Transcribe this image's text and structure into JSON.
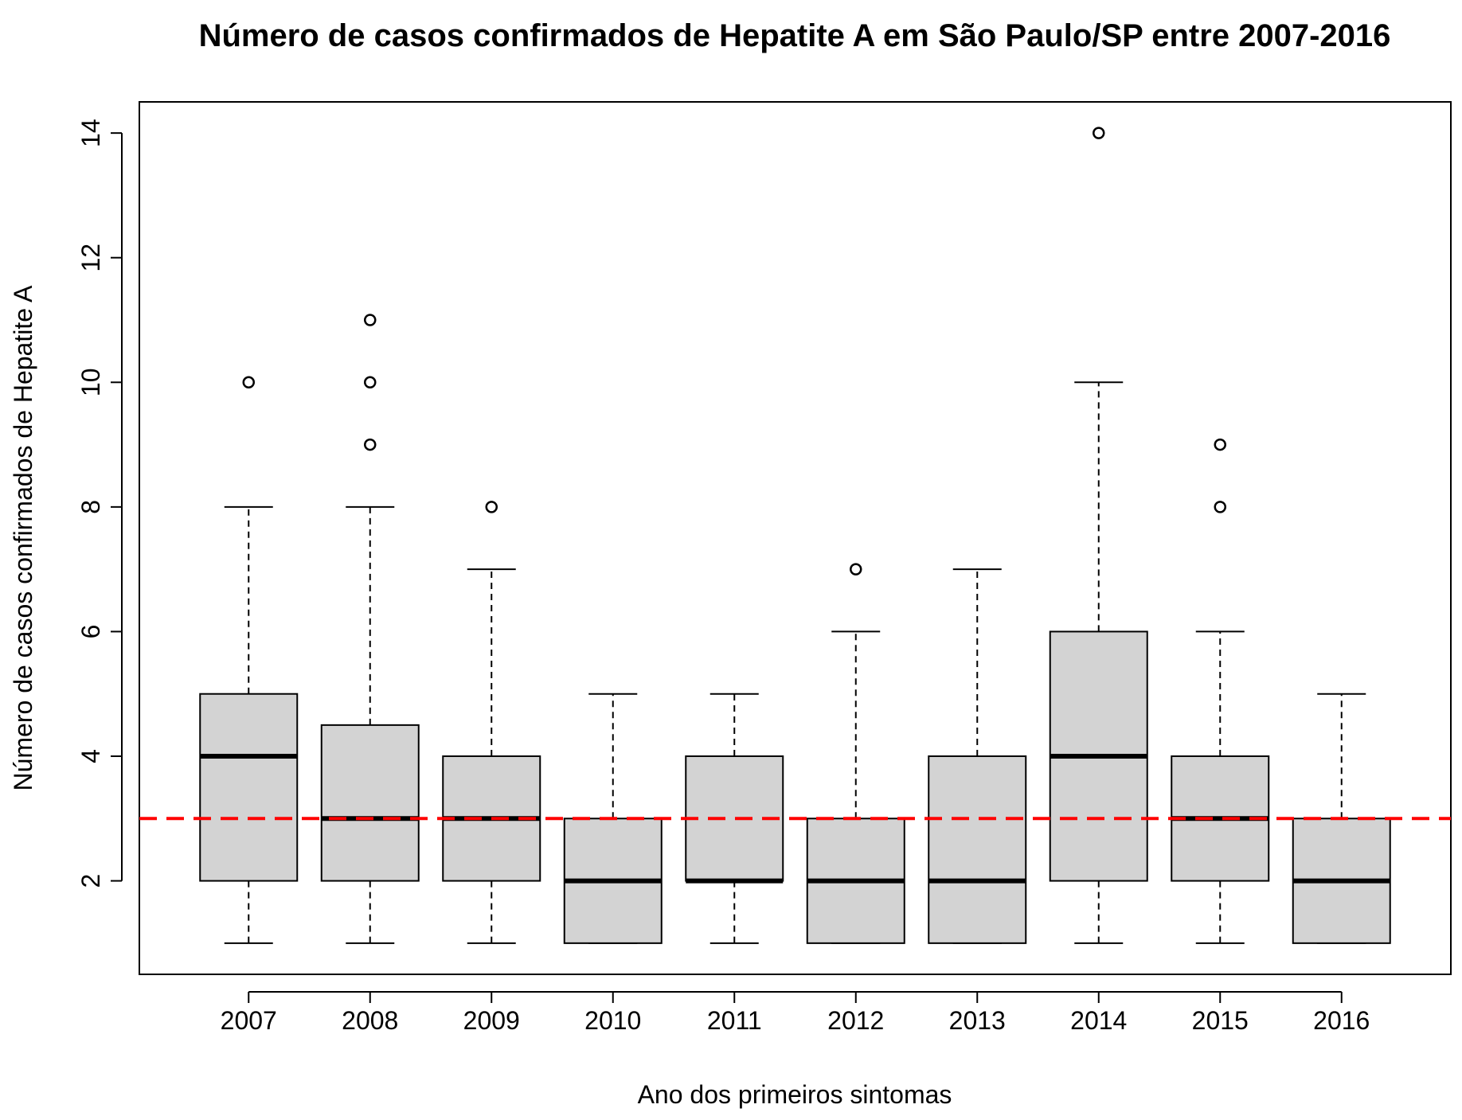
{
  "chart_data": {
    "type": "boxplot",
    "title": "Número de casos confirmados de Hepatite A em São Paulo/SP entre 2007-2016",
    "xlabel": "Ano dos primeiros sintomas",
    "ylabel": "Número de casos confirmados de Hepatite A",
    "ylim": [
      0.5,
      14.5
    ],
    "yticks": [
      2,
      4,
      6,
      8,
      10,
      12,
      14
    ],
    "grid": false,
    "legend": "none",
    "box_fill": "#d3d3d3",
    "reference_line": {
      "y": 3,
      "color": "#ff0000",
      "style": "dashed"
    },
    "categories": [
      "2007",
      "2008",
      "2009",
      "2010",
      "2011",
      "2012",
      "2013",
      "2014",
      "2015",
      "2016"
    ],
    "boxes": [
      {
        "category": "2007",
        "whisker_low": 1,
        "q1": 2,
        "median": 4,
        "q3": 5,
        "whisker_high": 8,
        "outliers": [
          10
        ]
      },
      {
        "category": "2008",
        "whisker_low": 1,
        "q1": 2,
        "median": 3,
        "q3": 4.5,
        "whisker_high": 8,
        "outliers": [
          9,
          10,
          11
        ]
      },
      {
        "category": "2009",
        "whisker_low": 1,
        "q1": 2,
        "median": 3,
        "q3": 4,
        "whisker_high": 7,
        "outliers": [
          8
        ]
      },
      {
        "category": "2010",
        "whisker_low": 1,
        "q1": 1,
        "median": 2,
        "q3": 3,
        "whisker_high": 5,
        "outliers": []
      },
      {
        "category": "2011",
        "whisker_low": 1,
        "q1": 2,
        "median": 2,
        "q3": 4,
        "whisker_high": 5,
        "outliers": []
      },
      {
        "category": "2012",
        "whisker_low": 1,
        "q1": 1,
        "median": 2,
        "q3": 3,
        "whisker_high": 6,
        "outliers": [
          7
        ]
      },
      {
        "category": "2013",
        "whisker_low": 1,
        "q1": 1,
        "median": 2,
        "q3": 4,
        "whisker_high": 7,
        "outliers": []
      },
      {
        "category": "2014",
        "whisker_low": 1,
        "q1": 2,
        "median": 4,
        "q3": 6,
        "whisker_high": 10,
        "outliers": [
          14
        ]
      },
      {
        "category": "2015",
        "whisker_low": 1,
        "q1": 2,
        "median": 3,
        "q3": 4,
        "whisker_high": 6,
        "outliers": [
          8,
          9
        ]
      },
      {
        "category": "2016",
        "whisker_low": 1,
        "q1": 1,
        "median": 2,
        "q3": 3,
        "whisker_high": 5,
        "outliers": []
      }
    ]
  }
}
